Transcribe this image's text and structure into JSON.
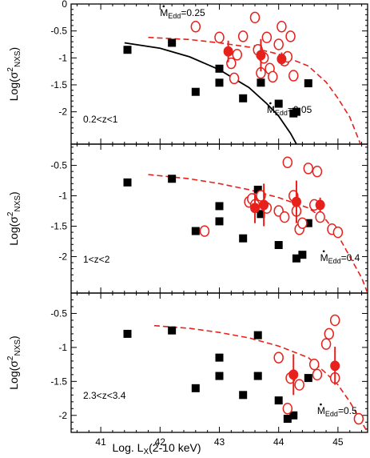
{
  "chart_data": {
    "type": "scatter",
    "xlabel": "Log. L",
    "xlabel_sub": "X",
    "xlabel_suffix": "(2-10 keV)",
    "xlim": [
      40.5,
      45.5
    ],
    "xticks": [
      41,
      42,
      43,
      44,
      45
    ],
    "ylabel": "Log(σ",
    "ylabel_sup": "2",
    "ylabel_sub": "NXS",
    "ylabel_suffix": ")",
    "mdot_label": "M",
    "mdot_sub": "Edd",
    "panels": [
      {
        "title": "0.2<z<1",
        "ylim": [
          0,
          -2.6
        ],
        "yticks": [
          0,
          -0.5,
          -1,
          -1.5,
          -2
        ],
        "ytick_labels": [
          "0",
          "-0.5",
          "-1",
          "-1.5",
          "-2"
        ],
        "annotations": [
          {
            "text": "=0.25",
            "x": 42.0,
            "y": -0.22
          },
          {
            "text": "=0.05",
            "x": 43.8,
            "y": -2.02
          }
        ],
        "squares": [
          [
            41.45,
            -0.85
          ],
          [
            42.2,
            -0.72
          ],
          [
            42.6,
            -1.63
          ],
          [
            43.0,
            -1.2
          ],
          [
            43.0,
            -1.46
          ],
          [
            43.4,
            -1.75
          ],
          [
            43.65,
            -0.84
          ],
          [
            43.7,
            -1.46
          ],
          [
            44.0,
            -1.85
          ],
          [
            44.25,
            -2.03
          ],
          [
            44.3,
            -2.0
          ],
          [
            44.5,
            -1.47
          ]
        ],
        "open_circles": [
          [
            42.6,
            -0.42
          ],
          [
            43.0,
            -0.62
          ],
          [
            43.2,
            -1.1
          ],
          [
            43.25,
            -1.38
          ],
          [
            43.3,
            -0.94
          ],
          [
            43.4,
            -0.6
          ],
          [
            43.6,
            -0.25
          ],
          [
            43.65,
            -0.85
          ],
          [
            43.7,
            -1.28
          ],
          [
            43.75,
            -1.0
          ],
          [
            43.8,
            -0.62
          ],
          [
            43.85,
            -1.2
          ],
          [
            43.9,
            -1.35
          ],
          [
            44.0,
            -0.75
          ],
          [
            44.05,
            -0.42
          ],
          [
            44.1,
            -1.05
          ],
          [
            44.15,
            -0.98
          ],
          [
            44.2,
            -0.6
          ],
          [
            44.25,
            -1.33
          ]
        ],
        "filled_circles": [
          [
            43.15,
            -0.88,
            0.2
          ],
          [
            43.7,
            -0.95,
            0.3
          ],
          [
            44.05,
            -1.02,
            0.12
          ]
        ],
        "curves": [
          {
            "style": "dashed",
            "color": "#e8201c",
            "points": [
              [
                41.8,
                -0.62
              ],
              [
                42.5,
                -0.66
              ],
              [
                43.0,
                -0.72
              ],
              [
                43.5,
                -0.8
              ],
              [
                44.0,
                -0.93
              ],
              [
                44.5,
                -1.15
              ],
              [
                44.8,
                -1.45
              ],
              [
                45.0,
                -1.75
              ],
              [
                45.2,
                -2.1
              ],
              [
                45.38,
                -2.6
              ]
            ]
          },
          {
            "style": "solid",
            "color": "#000000",
            "points": [
              [
                41.4,
                -0.72
              ],
              [
                42.0,
                -0.82
              ],
              [
                42.5,
                -0.98
              ],
              [
                43.0,
                -1.22
              ],
              [
                43.5,
                -1.55
              ],
              [
                43.8,
                -1.85
              ],
              [
                44.0,
                -2.08
              ],
              [
                44.2,
                -2.4
              ],
              [
                44.3,
                -2.6
              ]
            ]
          }
        ]
      },
      {
        "title": "1<z<2",
        "ylim": [
          -0.15,
          -2.6
        ],
        "yticks": [
          -0.5,
          -1,
          -1.5,
          -2
        ],
        "ytick_labels": [
          "-0.5",
          "-1",
          "-1.5",
          "-2"
        ],
        "annotations": [
          {
            "text": "=0.4",
            "x": 44.7,
            "y": -2.07
          }
        ],
        "squares": [
          [
            41.45,
            -0.78
          ],
          [
            42.2,
            -0.72
          ],
          [
            42.6,
            -1.58
          ],
          [
            43.0,
            -1.17
          ],
          [
            43.0,
            -1.42
          ],
          [
            43.4,
            -1.7
          ],
          [
            43.65,
            -0.9
          ],
          [
            43.7,
            -1.3
          ],
          [
            44.0,
            -1.81
          ],
          [
            44.3,
            -2.03
          ],
          [
            44.4,
            -1.97
          ],
          [
            44.5,
            -1.45
          ]
        ],
        "open_circles": [
          [
            42.75,
            -1.58
          ],
          [
            43.5,
            -1.1
          ],
          [
            43.55,
            -1.05
          ],
          [
            43.6,
            -1.15
          ],
          [
            43.7,
            -1.0
          ],
          [
            43.8,
            -1.2
          ],
          [
            44.0,
            -1.25
          ],
          [
            44.1,
            -1.35
          ],
          [
            44.15,
            -0.45
          ],
          [
            44.25,
            -1.0
          ],
          [
            44.3,
            -1.25
          ],
          [
            44.35,
            -1.55
          ],
          [
            44.4,
            -1.45
          ],
          [
            44.5,
            -0.55
          ],
          [
            44.6,
            -1.15
          ],
          [
            44.65,
            -0.6
          ],
          [
            44.7,
            -1.35
          ],
          [
            44.9,
            -1.55
          ],
          [
            45.0,
            -1.6
          ]
        ],
        "filled_circles": [
          [
            43.6,
            -1.2,
            0.25
          ],
          [
            43.75,
            -1.15,
            0.35
          ],
          [
            44.3,
            -1.1,
            0.35
          ],
          [
            44.7,
            -1.15,
            0.12
          ]
        ],
        "curves": [
          {
            "style": "dashed",
            "color": "#e8201c",
            "points": [
              [
                41.8,
                -0.65
              ],
              [
                42.5,
                -0.72
              ],
              [
                43.0,
                -0.8
              ],
              [
                43.5,
                -0.9
              ],
              [
                44.0,
                -1.03
              ],
              [
                44.5,
                -1.2
              ],
              [
                44.8,
                -1.4
              ],
              [
                45.0,
                -1.65
              ],
              [
                45.2,
                -2.0
              ],
              [
                45.4,
                -2.35
              ],
              [
                45.5,
                -2.6
              ]
            ]
          }
        ]
      },
      {
        "title": "2.3<z<3.4",
        "ylim": [
          -0.2,
          -2.25
        ],
        "yticks": [
          -0.5,
          -1,
          -1.5,
          -2
        ],
        "ytick_labels": [
          "-0.5",
          "-1",
          "-1.5",
          "-2"
        ],
        "annotations": [
          {
            "text": "=0.5",
            "x": 44.65,
            "y": -1.98
          }
        ],
        "squares": [
          [
            41.45,
            -0.8
          ],
          [
            42.2,
            -0.75
          ],
          [
            42.6,
            -1.6
          ],
          [
            43.0,
            -1.15
          ],
          [
            43.0,
            -1.42
          ],
          [
            43.4,
            -1.7
          ],
          [
            43.65,
            -0.82
          ],
          [
            43.65,
            -1.42
          ],
          [
            44.0,
            -1.78
          ],
          [
            44.15,
            -2.05
          ],
          [
            44.25,
            -2.0
          ],
          [
            44.5,
            -1.45
          ]
        ],
        "open_circles": [
          [
            44.0,
            -1.15
          ],
          [
            44.15,
            -1.9
          ],
          [
            44.2,
            -1.45
          ],
          [
            44.35,
            -1.55
          ],
          [
            44.6,
            -1.25
          ],
          [
            44.65,
            -1.4
          ],
          [
            44.8,
            -0.95
          ],
          [
            44.85,
            -0.8
          ],
          [
            44.95,
            -0.6
          ],
          [
            44.95,
            -1.45
          ],
          [
            45.35,
            -2.05
          ]
        ],
        "filled_circles": [
          [
            44.25,
            -1.4,
            0.3
          ],
          [
            44.95,
            -1.27,
            0.28
          ]
        ],
        "curves": [
          {
            "style": "dashed",
            "color": "#e8201c",
            "points": [
              [
                41.9,
                -0.68
              ],
              [
                42.5,
                -0.72
              ],
              [
                43.0,
                -0.78
              ],
              [
                43.5,
                -0.86
              ],
              [
                44.0,
                -0.98
              ],
              [
                44.5,
                -1.15
              ],
              [
                44.8,
                -1.38
              ],
              [
                45.0,
                -1.55
              ],
              [
                45.2,
                -1.8
              ],
              [
                45.4,
                -2.1
              ],
              [
                45.5,
                -2.25
              ]
            ]
          }
        ]
      }
    ]
  },
  "colors": {
    "red": "#e8201c",
    "black": "#000000"
  }
}
